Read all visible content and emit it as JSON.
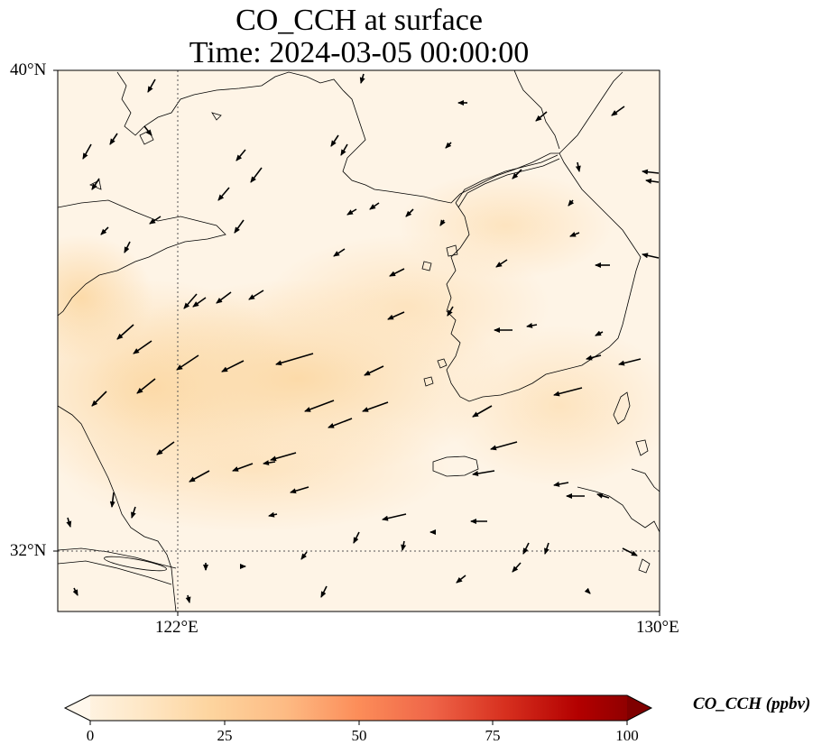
{
  "title": {
    "line1": "CO_CCH at surface",
    "line2": "Time: 2024-03-05 00:00:00"
  },
  "axes": {
    "lat_labels": [
      "40°N",
      "32°N"
    ],
    "lon_labels": [
      "122°E",
      "130°E"
    ],
    "lon_range": [
      120,
      130
    ],
    "lat_range": [
      31,
      40
    ],
    "gridlines": {
      "lon": [
        122
      ],
      "lat": [
        32
      ],
      "style": "dotted"
    }
  },
  "colorbar": {
    "label": "CO_CCH (ppbv)",
    "ticks": [
      "0",
      "25",
      "50",
      "75",
      "100"
    ],
    "range": [
      0,
      100
    ],
    "extend": "both",
    "colormap": "OrRd",
    "colors": [
      "#fff7ec",
      "#fee8c8",
      "#fdd49e",
      "#fdbb84",
      "#fc8d59",
      "#ef6548",
      "#d7301f",
      "#b30000",
      "#7f0000"
    ]
  },
  "field": {
    "background_color": "#fef4e6",
    "high_band_color": "#fcdcae",
    "description_values_ppbv": "approximately 5-15 over domain, band up to ~15"
  }
}
